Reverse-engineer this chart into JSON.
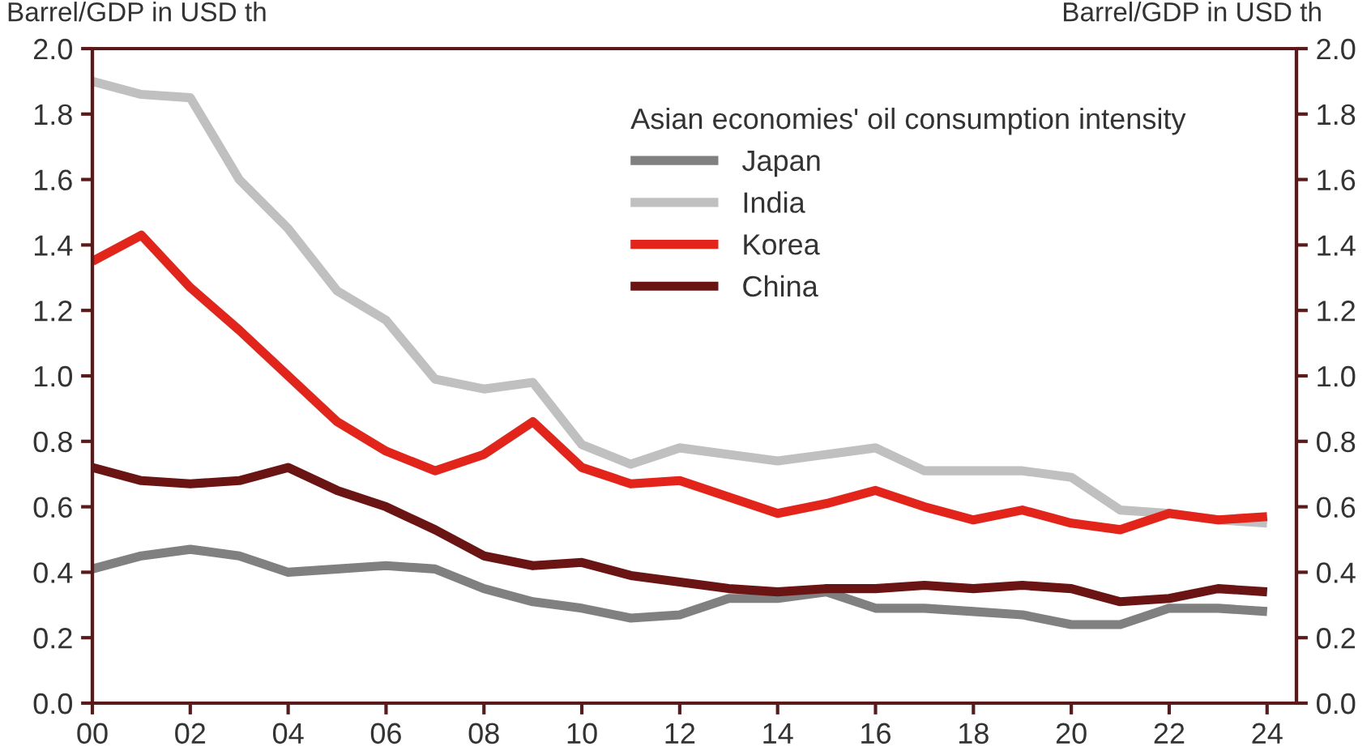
{
  "chart_data": {
    "type": "line",
    "ylabel": "Barrel/GDP in USD th",
    "y2label": "Barrel/GDP in USD th",
    "legend_title": "Asian economies' oil consumption intensity",
    "x": [
      0,
      1,
      2,
      3,
      4,
      5,
      6,
      7,
      8,
      9,
      10,
      11,
      12,
      13,
      14,
      15,
      16,
      17,
      18,
      19,
      20,
      21,
      22,
      23,
      24
    ],
    "series": [
      {
        "name": "Japan",
        "color": "#808080",
        "values": [
          0.41,
          0.45,
          0.47,
          0.45,
          0.4,
          0.41,
          0.42,
          0.41,
          0.35,
          0.31,
          0.29,
          0.26,
          0.27,
          0.32,
          0.32,
          0.34,
          0.29,
          0.29,
          0.28,
          0.27,
          0.24,
          0.24,
          0.29,
          0.29,
          0.28
        ]
      },
      {
        "name": "India",
        "color": "#c0c0c0",
        "values": [
          1.9,
          1.86,
          1.85,
          1.6,
          1.45,
          1.26,
          1.17,
          0.99,
          0.96,
          0.98,
          0.79,
          0.73,
          0.78,
          0.76,
          0.74,
          0.76,
          0.78,
          0.71,
          0.71,
          0.71,
          0.69,
          0.59,
          0.58,
          0.56,
          0.55
        ]
      },
      {
        "name": "Korea",
        "color": "#e3241b",
        "values": [
          1.35,
          1.43,
          1.27,
          1.14,
          1.0,
          0.86,
          0.77,
          0.71,
          0.76,
          0.86,
          0.72,
          0.67,
          0.68,
          0.63,
          0.58,
          0.61,
          0.65,
          0.6,
          0.56,
          0.59,
          0.55,
          0.53,
          0.58,
          0.56,
          0.57
        ]
      },
      {
        "name": "China",
        "color": "#6b1414",
        "values": [
          0.72,
          0.68,
          0.67,
          0.68,
          0.72,
          0.65,
          0.6,
          0.53,
          0.45,
          0.42,
          0.43,
          0.39,
          0.37,
          0.35,
          0.34,
          0.35,
          0.35,
          0.36,
          0.35,
          0.36,
          0.35,
          0.31,
          0.32,
          0.35,
          0.34
        ]
      }
    ],
    "xlim": [
      0,
      24.6
    ],
    "xticks": [
      {
        "value": 0,
        "label": "00"
      },
      {
        "value": 2,
        "label": "02"
      },
      {
        "value": 4,
        "label": "04"
      },
      {
        "value": 6,
        "label": "06"
      },
      {
        "value": 8,
        "label": "08"
      },
      10,
      12,
      14,
      16,
      18,
      20,
      22,
      24
    ],
    "ylim": [
      0,
      2
    ],
    "yticks": [
      {
        "value": 0,
        "label": "0.0"
      },
      0.2,
      0.4,
      0.6,
      0.8,
      {
        "value": 1,
        "label": "1.0"
      },
      1.2,
      1.4,
      1.6,
      1.8,
      {
        "value": 2,
        "label": "2.0"
      }
    ],
    "y2lim": [
      0,
      2
    ],
    "y2ticks": [
      {
        "value": 0,
        "label": "0.0"
      },
      0.2,
      0.4,
      0.6,
      0.8,
      {
        "value": 1,
        "label": "1.0"
      },
      1.2,
      1.4,
      1.6,
      1.8,
      {
        "value": 2,
        "label": "2.0"
      }
    ],
    "grid": false,
    "legend": "top right",
    "marker": "none",
    "line_style": "solid"
  }
}
